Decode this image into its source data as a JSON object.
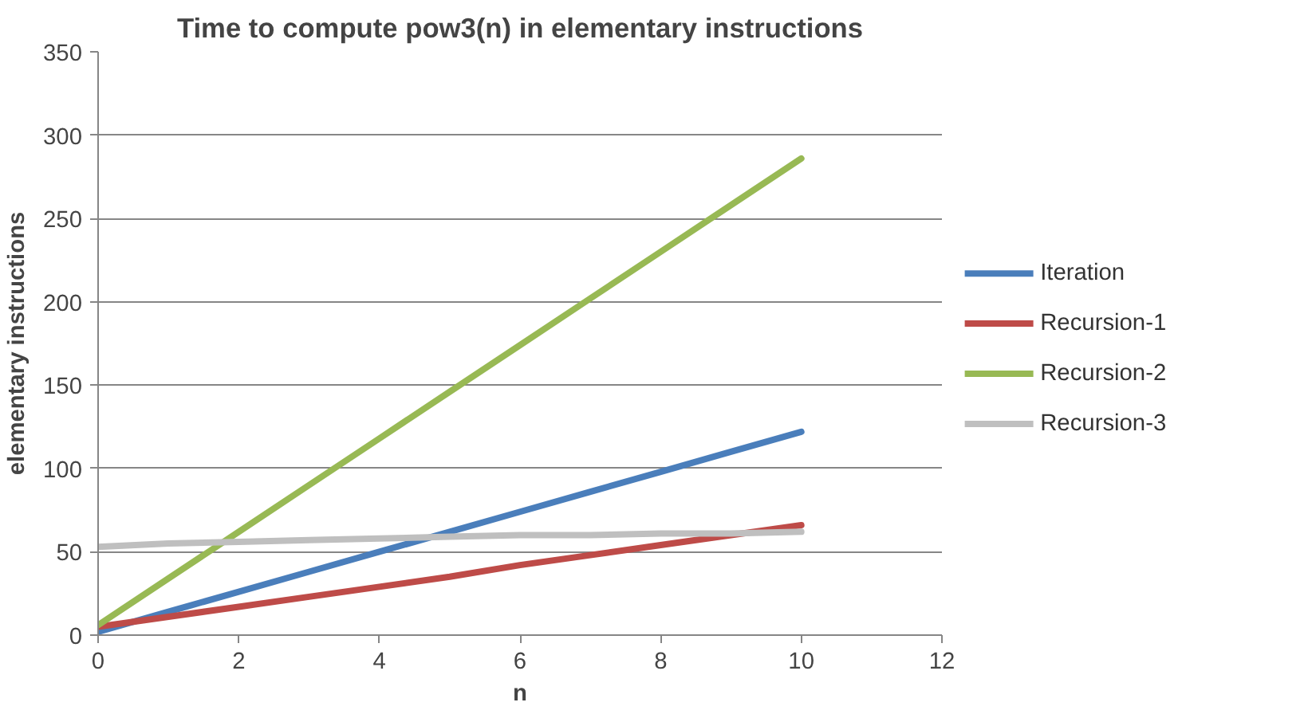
{
  "chart_data": {
    "type": "line",
    "title": "Time to compute pow3(n) in elementary instructions",
    "xlabel": "n",
    "ylabel": "elementary instructions",
    "x": [
      0,
      1,
      2,
      3,
      4,
      5,
      6,
      7,
      8,
      9,
      10
    ],
    "series": [
      {
        "name": "Iteration",
        "color": "#4a7ebb",
        "values": [
          2,
          14,
          26,
          38,
          50,
          62,
          74,
          86,
          98,
          110,
          122
        ]
      },
      {
        "name": "Recursion-1",
        "color": "#be4b48",
        "values": [
          5,
          11,
          17,
          23,
          29,
          35,
          42,
          48,
          54,
          60,
          66
        ]
      },
      {
        "name": "Recursion-2",
        "color": "#98b954",
        "values": [
          6,
          34,
          62,
          90,
          118,
          146,
          174,
          202,
          230,
          258,
          286
        ]
      },
      {
        "name": "Recursion-3",
        "color": "#bfbfbf",
        "values": [
          53,
          55,
          56,
          57,
          58,
          59,
          60,
          60,
          61,
          61,
          62
        ]
      }
    ],
    "xlim": [
      0,
      12
    ],
    "xticks": [
      0,
      2,
      4,
      6,
      8,
      10,
      12
    ],
    "ylim": [
      0,
      350
    ],
    "yticks": [
      0,
      50,
      100,
      150,
      200,
      250,
      300,
      350
    ],
    "grid": "y",
    "legend": "right",
    "marker": "none",
    "line_style": "solid"
  }
}
